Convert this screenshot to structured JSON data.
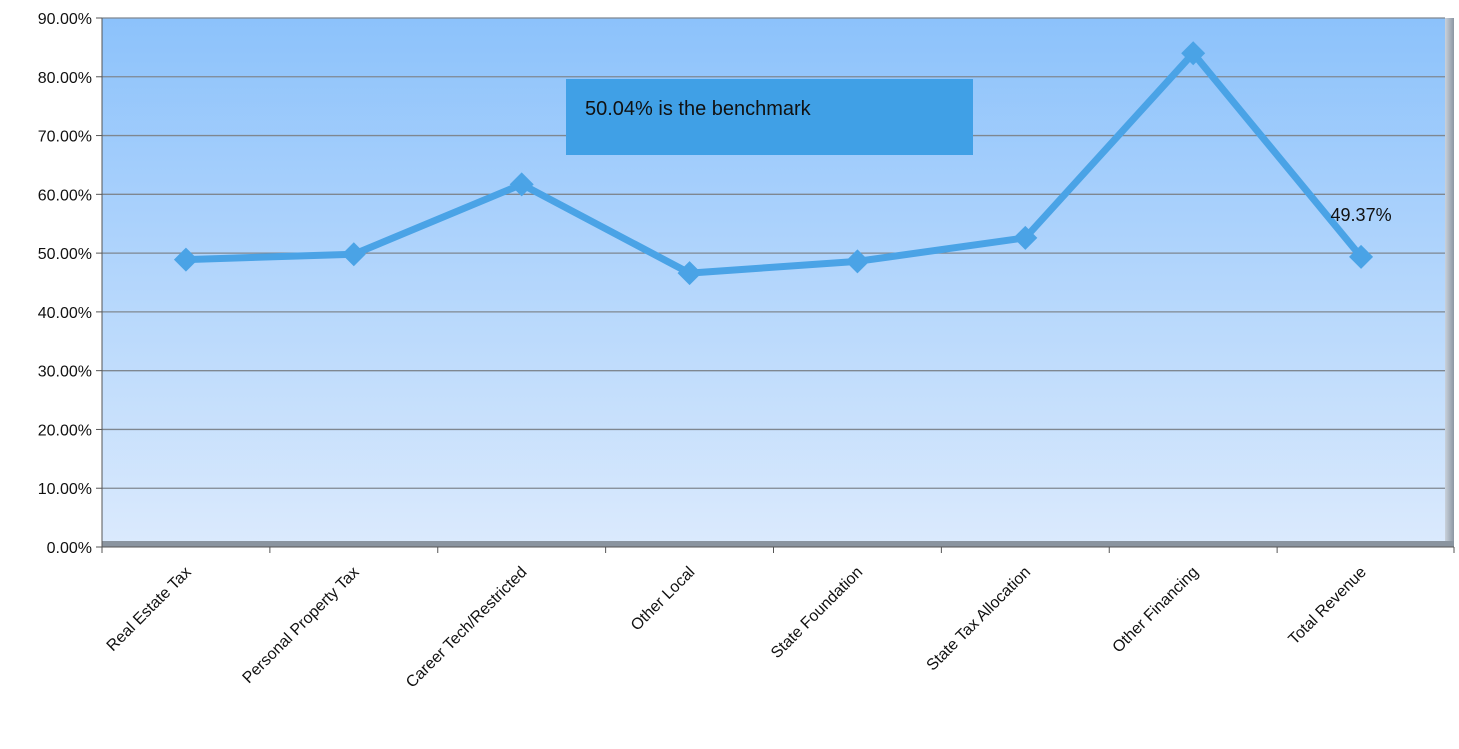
{
  "chart_data": {
    "type": "line",
    "categories": [
      "Real Estate Tax",
      "Personal Property Tax",
      "Career Tech/Restricted",
      "Other Local",
      "State Foundation",
      "State Tax Allocation",
      "Other Financing",
      "Total Revenue"
    ],
    "series": [
      {
        "values": [
          48.9,
          49.8,
          61.7,
          46.6,
          48.6,
          52.6,
          84.0,
          49.37
        ]
      }
    ],
    "y_ticks": [
      "0.00%",
      "10.00%",
      "20.00%",
      "30.00%",
      "40.00%",
      "50.00%",
      "60.00%",
      "70.00%",
      "80.00%",
      "90.00%"
    ],
    "ylim": [
      0,
      90
    ],
    "grid": true,
    "data_labels": [
      {
        "category": "Total Revenue",
        "text": "49.37%"
      }
    ],
    "annotation": "50.04% is the benchmark",
    "title": "",
    "xlabel": "",
    "ylabel": ""
  },
  "colors": {
    "line": "#4aa3e6",
    "plot_top": "#8cc2fb",
    "plot_bottom": "#dbeafd",
    "gridline": "#7f8790",
    "annotation_box": "#40a0e6"
  }
}
